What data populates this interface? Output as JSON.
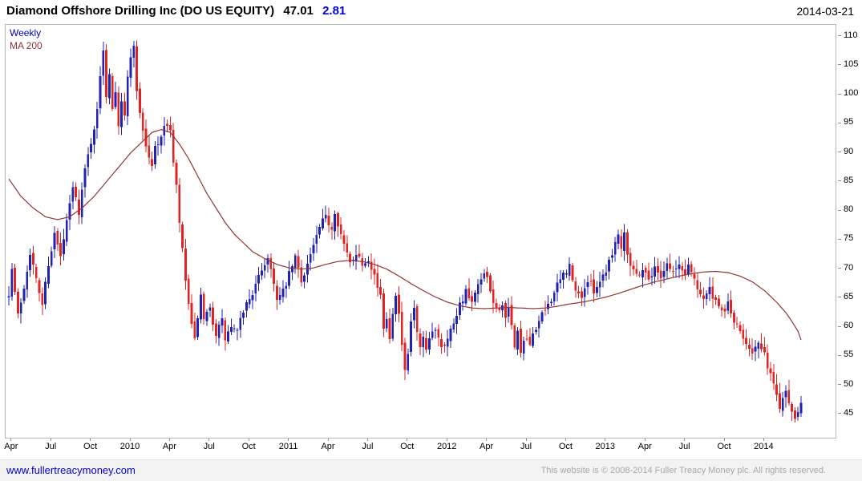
{
  "header": {
    "title": "Diamond Offshore Drilling Inc (DO US EQUITY)",
    "price": "47.01",
    "change": "2.81",
    "date": "2014-03-21"
  },
  "legend": {
    "timeframe": "Weekly",
    "ma": "MA 200"
  },
  "footer": {
    "site_link": "www.fullertreacymoney.com",
    "copyright": "This website is © 2008-2014 Fuller Treacy Money plc. All rights reserved."
  },
  "colors": {
    "up": "#2121b4",
    "down": "#e02424",
    "ma": "#8f3535",
    "legend_timeframe": "#0000bb",
    "change": "#0000dd",
    "link": "#0000cc",
    "border": "#b6b6b6"
  },
  "chart_data": {
    "type": "candlestick",
    "title": "Diamond Offshore Drilling Inc (DO US EQUITY)",
    "timeframe": "Weekly",
    "overlay": "MA 200",
    "last_close": 47.01,
    "change": 2.81,
    "as_of": "2014-03-21",
    "ylim": [
      41,
      112
    ],
    "yticks": [
      45,
      50,
      55,
      60,
      65,
      70,
      75,
      80,
      85,
      90,
      95,
      100,
      105,
      110
    ],
    "xticks": [
      {
        "label": "Apr",
        "week": 1
      },
      {
        "label": "Jul",
        "week": 14
      },
      {
        "label": "Oct",
        "week": 27
      },
      {
        "label": "2010",
        "week": 40
      },
      {
        "label": "Apr",
        "week": 53
      },
      {
        "label": "Jul",
        "week": 66
      },
      {
        "label": "Oct",
        "week": 79
      },
      {
        "label": "2011",
        "week": 92
      },
      {
        "label": "Apr",
        "week": 105
      },
      {
        "label": "Jul",
        "week": 118
      },
      {
        "label": "Oct",
        "week": 131
      },
      {
        "label": "2012",
        "week": 144
      },
      {
        "label": "Apr",
        "week": 157
      },
      {
        "label": "Jul",
        "week": 170
      },
      {
        "label": "Oct",
        "week": 183
      },
      {
        "label": "2013",
        "week": 196
      },
      {
        "label": "Apr",
        "week": 209
      },
      {
        "label": "Jul",
        "week": 222
      },
      {
        "label": "Oct",
        "week": 235
      },
      {
        "label": "2014",
        "week": 248
      }
    ],
    "weeks_total": 261,
    "seed": 7,
    "close_anchors": [
      [
        0,
        66
      ],
      [
        1,
        70
      ],
      [
        3,
        62
      ],
      [
        5,
        67
      ],
      [
        7,
        73
      ],
      [
        9,
        68
      ],
      [
        11,
        64
      ],
      [
        13,
        71
      ],
      [
        15,
        76
      ],
      [
        17,
        72
      ],
      [
        19,
        78
      ],
      [
        21,
        84
      ],
      [
        23,
        80
      ],
      [
        25,
        87
      ],
      [
        27,
        92
      ],
      [
        29,
        97
      ],
      [
        30,
        103
      ],
      [
        31,
        108
      ],
      [
        32,
        100
      ],
      [
        33,
        104
      ],
      [
        34,
        98
      ],
      [
        35,
        101
      ],
      [
        36,
        95
      ],
      [
        37,
        99
      ],
      [
        38,
        96
      ],
      [
        39,
        103
      ],
      [
        40,
        107
      ],
      [
        41,
        108
      ],
      [
        42,
        101
      ],
      [
        43,
        97
      ],
      [
        45,
        91
      ],
      [
        47,
        87.5
      ],
      [
        48,
        91
      ],
      [
        50,
        93
      ],
      [
        52,
        95
      ],
      [
        53,
        94
      ],
      [
        54,
        88
      ],
      [
        55,
        84
      ],
      [
        56,
        78
      ],
      [
        57,
        73
      ],
      [
        58,
        68
      ],
      [
        59,
        64
      ],
      [
        60,
        60
      ],
      [
        61,
        57.5
      ],
      [
        62,
        62
      ],
      [
        63,
        65
      ],
      [
        64,
        61
      ],
      [
        66,
        63
      ],
      [
        68,
        59
      ],
      [
        70,
        61
      ],
      [
        71,
        58
      ],
      [
        73,
        60
      ],
      [
        75,
        59
      ],
      [
        77,
        63
      ],
      [
        79,
        65
      ],
      [
        81,
        67
      ],
      [
        83,
        70
      ],
      [
        85,
        72
      ],
      [
        87,
        68
      ],
      [
        88,
        64.5
      ],
      [
        90,
        66
      ],
      [
        92,
        69
      ],
      [
        94,
        72
      ],
      [
        96,
        68
      ],
      [
        98,
        71
      ],
      [
        100,
        74
      ],
      [
        102,
        77
      ],
      [
        104,
        79
      ],
      [
        106,
        77
      ],
      [
        107,
        80
      ],
      [
        108,
        78
      ],
      [
        110,
        74
      ],
      [
        112,
        71
      ],
      [
        114,
        73
      ],
      [
        116,
        71
      ],
      [
        118,
        72
      ],
      [
        120,
        69
      ],
      [
        122,
        65
      ],
      [
        123,
        60
      ],
      [
        124,
        62
      ],
      [
        125,
        58
      ],
      [
        126,
        63
      ],
      [
        127,
        66
      ],
      [
        128,
        62
      ],
      [
        129,
        57
      ],
      [
        130,
        52
      ],
      [
        131,
        55
      ],
      [
        132,
        61
      ],
      [
        133,
        63
      ],
      [
        134,
        59
      ],
      [
        135,
        56
      ],
      [
        136,
        58
      ],
      [
        137,
        55.5
      ],
      [
        138,
        58
      ],
      [
        140,
        60
      ],
      [
        142,
        57
      ],
      [
        144,
        58
      ],
      [
        146,
        61
      ],
      [
        148,
        64
      ],
      [
        150,
        66
      ],
      [
        152,
        64
      ],
      [
        154,
        67
      ],
      [
        156,
        69
      ],
      [
        157,
        68
      ],
      [
        158,
        66
      ],
      [
        160,
        63
      ],
      [
        162,
        64
      ],
      [
        163,
        61
      ],
      [
        164,
        63
      ],
      [
        165,
        60
      ],
      [
        166,
        57
      ],
      [
        167,
        59
      ],
      [
        168,
        56
      ],
      [
        170,
        58
      ],
      [
        171,
        56.5
      ],
      [
        172,
        59
      ],
      [
        174,
        61
      ],
      [
        176,
        63
      ],
      [
        178,
        65
      ],
      [
        180,
        67
      ],
      [
        182,
        69
      ],
      [
        184,
        70.5
      ],
      [
        185,
        68
      ],
      [
        186,
        66
      ],
      [
        188,
        65.5
      ],
      [
        190,
        68
      ],
      [
        192,
        66.5
      ],
      [
        194,
        68
      ],
      [
        196,
        70
      ],
      [
        198,
        73
      ],
      [
        200,
        76
      ],
      [
        201,
        74
      ],
      [
        202,
        76.5
      ],
      [
        203,
        73
      ],
      [
        204,
        71
      ],
      [
        206,
        69
      ],
      [
        208,
        70
      ],
      [
        210,
        68.5
      ],
      [
        212,
        70
      ],
      [
        214,
        69
      ],
      [
        216,
        71
      ],
      [
        218,
        69.5
      ],
      [
        220,
        70.5
      ],
      [
        222,
        69
      ],
      [
        223,
        71
      ],
      [
        224,
        69.5
      ],
      [
        226,
        67
      ],
      [
        228,
        65
      ],
      [
        230,
        66.5
      ],
      [
        232,
        64
      ],
      [
        234,
        62.5
      ],
      [
        236,
        64
      ],
      [
        238,
        61
      ],
      [
        240,
        59
      ],
      [
        242,
        57.5
      ],
      [
        244,
        56
      ],
      [
        246,
        57
      ],
      [
        248,
        55
      ],
      [
        250,
        52
      ],
      [
        251,
        50
      ],
      [
        252,
        48.5
      ],
      [
        253,
        46.5
      ],
      [
        254,
        48
      ],
      [
        255,
        49.5
      ],
      [
        256,
        47
      ],
      [
        257,
        45.5
      ],
      [
        258,
        44.8
      ],
      [
        259,
        46
      ],
      [
        260,
        47.01
      ]
    ],
    "ma_anchors": [
      [
        0,
        85.5
      ],
      [
        4,
        82.5
      ],
      [
        8,
        80.5
      ],
      [
        12,
        79
      ],
      [
        16,
        78.5
      ],
      [
        20,
        79
      ],
      [
        24,
        80.5
      ],
      [
        28,
        82.5
      ],
      [
        32,
        85
      ],
      [
        36,
        87.5
      ],
      [
        40,
        90
      ],
      [
        44,
        92
      ],
      [
        47,
        93.5
      ],
      [
        50,
        94
      ],
      [
        53,
        93.5
      ],
      [
        56,
        91.5
      ],
      [
        59,
        89
      ],
      [
        62,
        86
      ],
      [
        65,
        83
      ],
      [
        68,
        80.5
      ],
      [
        71,
        78
      ],
      [
        74,
        76
      ],
      [
        77,
        74.5
      ],
      [
        80,
        73
      ],
      [
        84,
        71.8
      ],
      [
        88,
        70.8
      ],
      [
        92,
        70.2
      ],
      [
        96,
        70
      ],
      [
        100,
        70.2
      ],
      [
        104,
        70.8
      ],
      [
        108,
        71.3
      ],
      [
        112,
        71.5
      ],
      [
        116,
        71.3
      ],
      [
        120,
        70.8
      ],
      [
        124,
        70
      ],
      [
        128,
        68.8
      ],
      [
        132,
        67.5
      ],
      [
        136,
        66.3
      ],
      [
        140,
        65.2
      ],
      [
        144,
        64.3
      ],
      [
        148,
        63.7
      ],
      [
        152,
        63.3
      ],
      [
        156,
        63.2
      ],
      [
        160,
        63.3
      ],
      [
        164,
        63.4
      ],
      [
        168,
        63.3
      ],
      [
        172,
        63.2
      ],
      [
        176,
        63.3
      ],
      [
        180,
        63.6
      ],
      [
        184,
        64
      ],
      [
        188,
        64.3
      ],
      [
        192,
        64.7
      ],
      [
        196,
        65.2
      ],
      [
        200,
        65.8
      ],
      [
        204,
        66.5
      ],
      [
        208,
        67.2
      ],
      [
        212,
        67.8
      ],
      [
        216,
        68.3
      ],
      [
        220,
        68.8
      ],
      [
        224,
        69.2
      ],
      [
        228,
        69.5
      ],
      [
        232,
        69.6
      ],
      [
        236,
        69.4
      ],
      [
        240,
        68.8
      ],
      [
        244,
        67.8
      ],
      [
        248,
        66.3
      ],
      [
        252,
        64.3
      ],
      [
        255,
        62.5
      ],
      [
        257,
        61
      ],
      [
        259,
        59.3
      ],
      [
        260,
        57.8
      ]
    ]
  }
}
